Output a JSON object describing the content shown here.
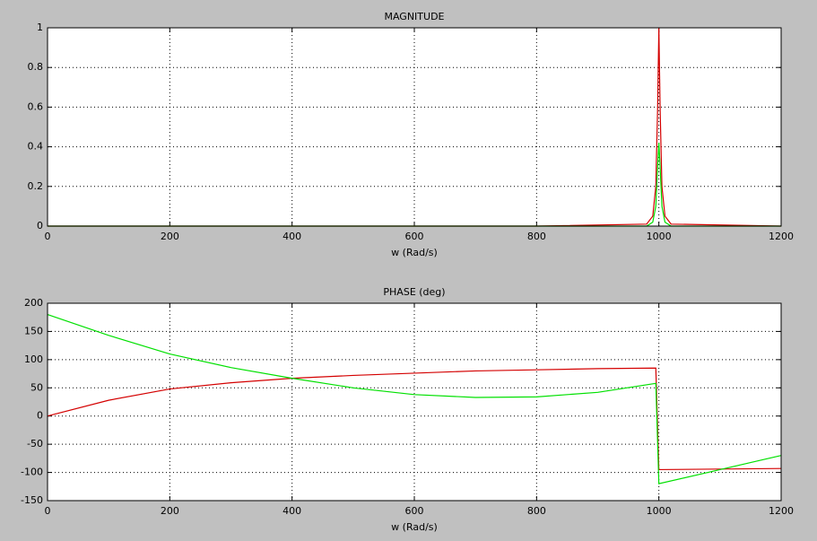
{
  "chart_data": [
    {
      "type": "line",
      "title": "MAGNITUDE",
      "x_label": "w (Rad/s)",
      "x": [
        0,
        200,
        400,
        600,
        800,
        980,
        990,
        995,
        998,
        1000,
        1002,
        1005,
        1010,
        1020,
        1200
      ],
      "series": [
        {
          "color": "#d40000",
          "values": [
            0,
            0,
            0,
            0,
            0,
            0.01,
            0.05,
            0.2,
            0.6,
            1,
            0.6,
            0.2,
            0.05,
            0.01,
            0
          ]
        },
        {
          "color": "#00e000",
          "values": [
            0,
            0,
            0,
            0,
            0,
            0,
            0.02,
            0.1,
            0.3,
            0.42,
            0.3,
            0.1,
            0.02,
            0,
            0
          ]
        }
      ],
      "xlim": [
        0,
        1200
      ],
      "xticks": [
        0,
        200,
        400,
        600,
        800,
        1000,
        1200
      ],
      "ylim": [
        0,
        1
      ],
      "yticks": [
        0,
        0.2,
        0.4,
        0.6,
        0.8,
        1
      ],
      "grid": true
    },
    {
      "type": "line",
      "title": "PHASE (deg)",
      "x_label": "w (Rad/s)",
      "x": [
        0,
        100,
        200,
        300,
        400,
        500,
        600,
        700,
        800,
        900,
        995,
        1000,
        1100,
        1200
      ],
      "series": [
        {
          "color": "#d40000",
          "values": [
            0,
            28,
            48,
            59,
            67,
            72,
            76,
            80,
            82,
            84,
            85,
            -95,
            -94,
            -93
          ]
        },
        {
          "color": "#00e000",
          "values": [
            180,
            143,
            110,
            86,
            67,
            50,
            38,
            33,
            34,
            42,
            58,
            -120,
            -95,
            -70
          ]
        }
      ],
      "xlim": [
        0,
        1200
      ],
      "xticks": [
        0,
        200,
        400,
        600,
        800,
        1000,
        1200
      ],
      "ylim": [
        -150,
        200
      ],
      "yticks": [
        -150,
        -100,
        -50,
        0,
        50,
        100,
        150,
        200
      ],
      "grid": true
    }
  ]
}
